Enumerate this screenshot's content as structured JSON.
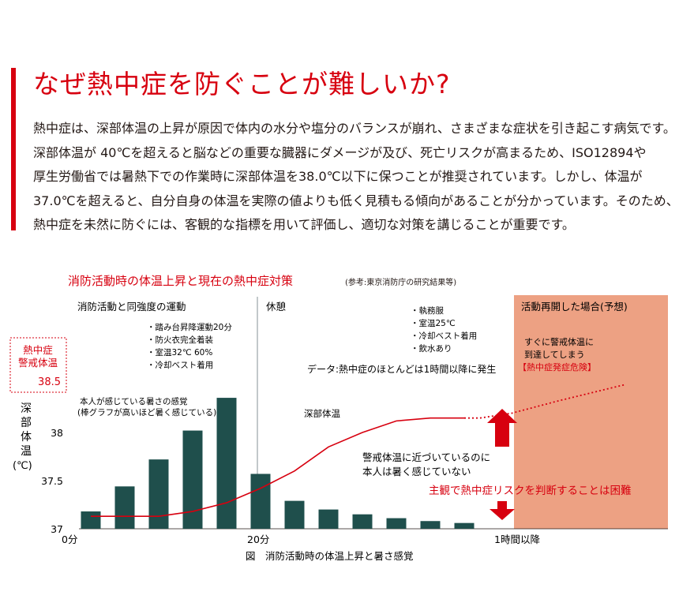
{
  "heading": "なぜ熱中症を防ぐことが難しいか?",
  "paragraph": [
    "熱中症は、深部体温の上昇が原因で体内の水分や塩分のバランスが崩れ、さまざまな症状を引き起こす病気です。",
    "深部体温が 40℃を超えると脳などの重要な臓器にダメージが及び、死亡リスクが高まるため、ISO12894や",
    "厚生労働省では暑熱下での作業時に深部体温を38.0℃以下に保つことが推奨されています。しかし、体温が",
    "37.0℃を超えると、自分自身の体温を実際の値よりも低く見積もる傾向があることが分かっています。そのため、",
    "熱中症を未然に防ぐには、客観的な指標を用いて評価し、適切な対策を講じることが重要です。"
  ],
  "colors": {
    "accent": "#d7000f",
    "bar": "#1f4f4c",
    "forecast_bg": "#eda183",
    "divider": "#9aa3a8"
  },
  "chart_data": {
    "type": "bar",
    "title": "消防活動時の体温上昇と現在の熱中症対策",
    "title_note": "(参考:東京消防庁の研究結果等)",
    "caption": "図　消防活動時の体温上昇と暑さ感覚",
    "ylabel": "深部体温(℃)",
    "ylim": [
      37,
      38.5
    ],
    "yticks": [
      "37",
      "37.5",
      "38"
    ],
    "xticks": [
      "0分",
      "20分",
      "1時間以降"
    ],
    "series": [
      {
        "name": "本人が感じている暑さの感覚",
        "note": "(棒グラフが高いほど暑く感じている)",
        "values": [
          0.18,
          0.44,
          0.72,
          1.02,
          1.36,
          0.57,
          0.29,
          0.2,
          0.15,
          0.11,
          0.08,
          0.06
        ]
      },
      {
        "name": "深部体温",
        "values": [
          37.13,
          37.13,
          37.13,
          37.18,
          37.27,
          37.42,
          37.6,
          37.85,
          38.0,
          38.12,
          38.15,
          38.15
        ]
      },
      {
        "name": "活動再開時",
        "values": [
          38.15,
          38.15,
          38.2,
          38.33,
          38.5
        ]
      }
    ],
    "phases": [
      {
        "label": "消防活動と同強度の運動",
        "items": [
          "・踏み台昇降運動20分",
          "・防火衣完全着装",
          "・室温32℃ 60%",
          "・冷却ベスト着用"
        ]
      },
      {
        "label": "休憩",
        "items": [
          "・執務服",
          "・室温25℃",
          "・冷却ベスト着用",
          "・飲水あり"
        ]
      },
      {
        "label": "活動再開した場合(予想)",
        "items": [
          "すぐに警戒体温に",
          "到達してしまう",
          "【熱中症発症危険】"
        ]
      }
    ],
    "annotations": {
      "alert_label_1": "熱中症",
      "alert_label_2": "警戒体温",
      "alert_value": "38.5",
      "data_note": "データ:熱中症のほとんどは1時間以降に発生",
      "curve_label": "深部体温",
      "gap_note_1": "警戒体温に近づいているのに",
      "gap_note_2": "本人は暑く感じていない",
      "conclusion": "主観で熱中症リスクを判断することは困難"
    }
  }
}
